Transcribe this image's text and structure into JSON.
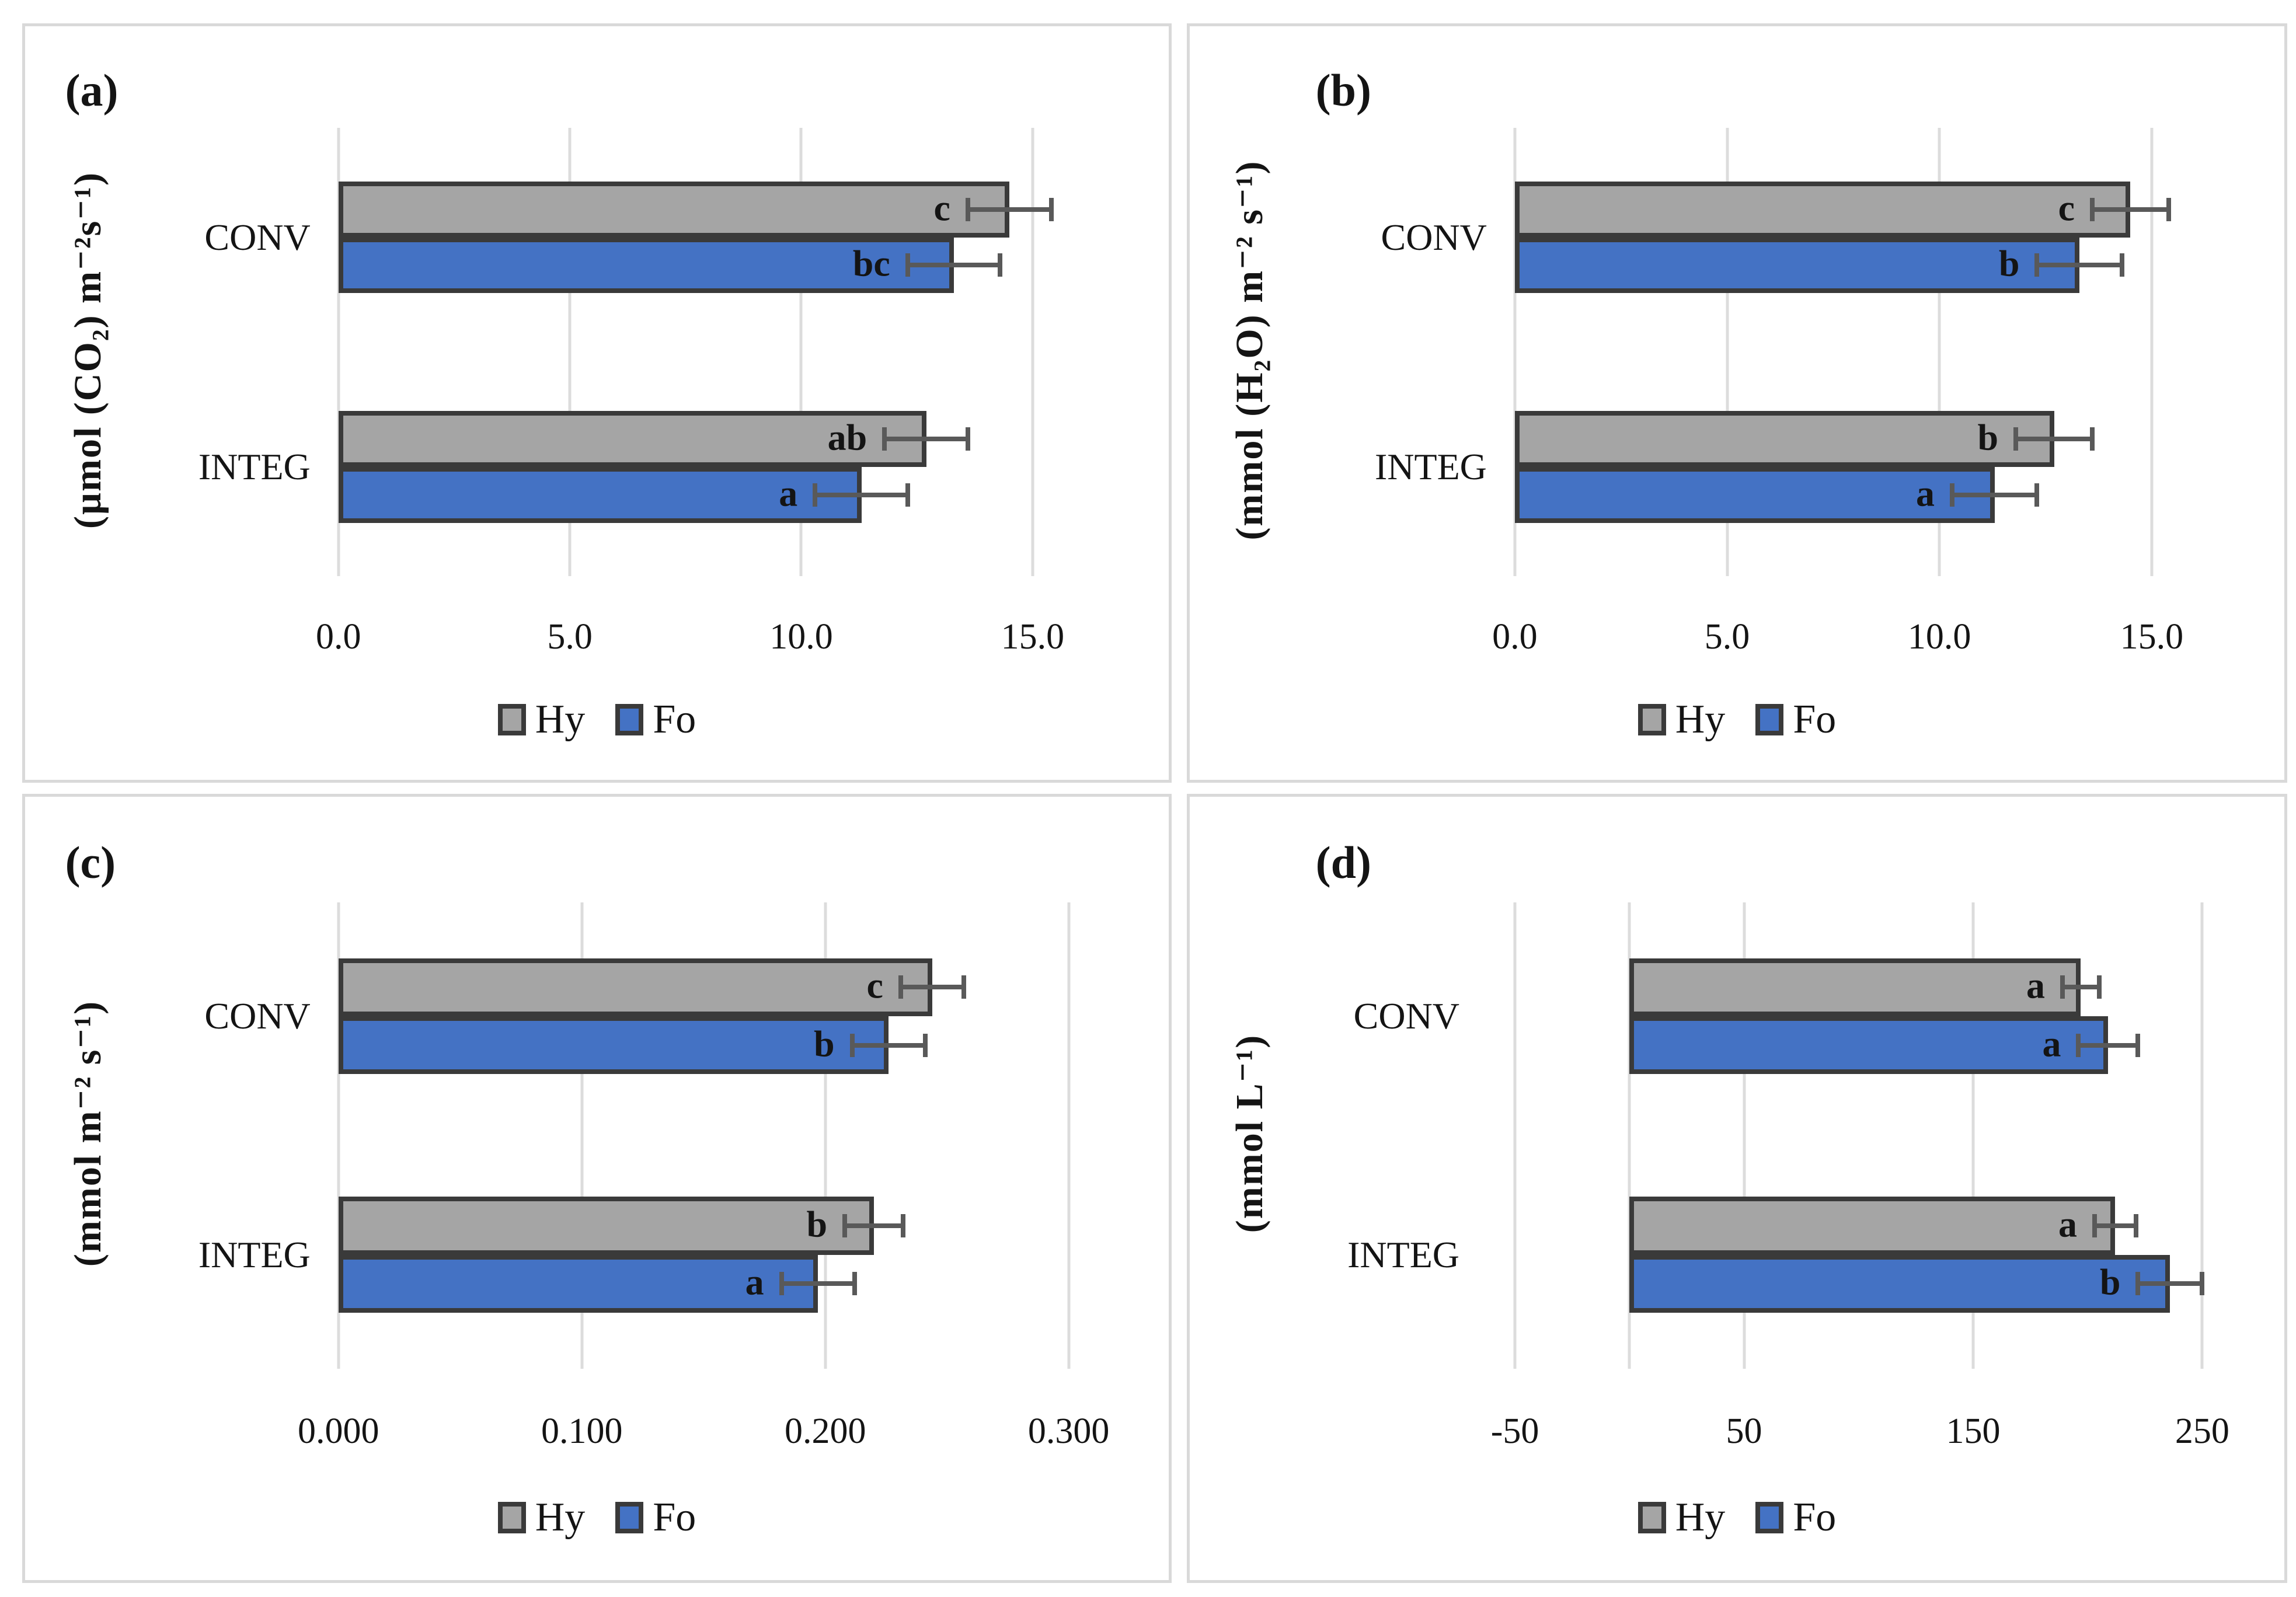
{
  "colors": {
    "hy_fill": "#A5A5A5",
    "fo_fill": "#4472C4",
    "bar_border": "#3A3A3A",
    "error_bar": "#595959",
    "gridline": "#DCDCDC",
    "panel_border": "#D9D9D9",
    "text": "#141414"
  },
  "chart_data": [
    {
      "id": "a",
      "panel_label": "(a)",
      "type": "bar",
      "orientation": "horizontal",
      "ylabel": "(µmol (CO₂) m⁻²s⁻¹)",
      "categories": [
        "CONV",
        "INTEG"
      ],
      "series": [
        {
          "name": "Hy",
          "color": "#A5A5A5",
          "values": [
            14.5,
            12.7
          ],
          "errors": [
            0.9,
            0.9
          ],
          "letters": [
            "c",
            "ab"
          ]
        },
        {
          "name": "Fo",
          "color": "#4472C4",
          "values": [
            13.3,
            11.3
          ],
          "errors": [
            1.0,
            1.0
          ],
          "letters": [
            "bc",
            "a"
          ]
        }
      ],
      "xlim": [
        0,
        17.2
      ],
      "gridlines": [
        0,
        5,
        10,
        15
      ],
      "ticks": {
        "values": [
          0,
          5,
          10,
          15
        ],
        "labels": [
          "0.0",
          "5.0",
          "10.0",
          "15.0"
        ]
      },
      "legend": {
        "position": "bottom",
        "items": [
          "Hy",
          "Fo"
        ]
      }
    },
    {
      "id": "b",
      "panel_label": "(b)",
      "type": "bar",
      "orientation": "horizontal",
      "ylabel": "(mmol (H₂O) m⁻² s⁻¹)",
      "categories": [
        "CONV",
        "INTEG"
      ],
      "series": [
        {
          "name": "Hy",
          "color": "#A5A5A5",
          "values": [
            14.5,
            12.7
          ],
          "errors": [
            0.9,
            0.9
          ],
          "letters": [
            "c",
            "b"
          ]
        },
        {
          "name": "Fo",
          "color": "#4472C4",
          "values": [
            13.3,
            11.3
          ],
          "errors": [
            1.0,
            1.0
          ],
          "letters": [
            "b",
            "a"
          ]
        }
      ],
      "xlim": [
        0,
        17.35
      ],
      "gridlines": [
        0,
        5,
        10,
        15
      ],
      "ticks": {
        "values": [
          0,
          5,
          10,
          15
        ],
        "labels": [
          "0.0",
          "5.0",
          "10.0",
          "15.0"
        ]
      },
      "legend": {
        "position": "bottom",
        "items": [
          "Hy",
          "Fo"
        ]
      }
    },
    {
      "id": "c",
      "panel_label": "(c)",
      "type": "bar",
      "orientation": "horizontal",
      "ylabel": "(mmol m⁻² s⁻¹)",
      "categories": [
        "CONV",
        "INTEG"
      ],
      "series": [
        {
          "name": "Hy",
          "color": "#A5A5A5",
          "values": [
            0.244,
            0.22
          ],
          "errors": [
            0.013,
            0.012
          ],
          "letters": [
            "c",
            "b"
          ]
        },
        {
          "name": "Fo",
          "color": "#4472C4",
          "values": [
            0.226,
            0.197
          ],
          "errors": [
            0.015,
            0.015
          ],
          "letters": [
            "b",
            "a"
          ]
        }
      ],
      "xlim": [
        0,
        0.327
      ],
      "gridlines": [
        0,
        0.1,
        0.2,
        0.3
      ],
      "ticks": {
        "values": [
          0,
          0.1,
          0.2,
          0.3
        ],
        "labels": [
          "0.000",
          "0.100",
          "0.200",
          "0.300"
        ]
      },
      "legend": {
        "position": "bottom",
        "items": [
          "Hy",
          "Fo"
        ]
      }
    },
    {
      "id": "d",
      "panel_label": "(d)",
      "type": "bar",
      "orientation": "horizontal",
      "ylabel": "(mmol L⁻¹)",
      "categories": [
        "CONV",
        "INTEG"
      ],
      "series": [
        {
          "name": "Hy",
          "color": "#A5A5A5",
          "values": [
            197,
            212
          ],
          "errors": [
            8,
            9
          ],
          "letters": [
            "a",
            "a"
          ]
        },
        {
          "name": "Fo",
          "color": "#4472C4",
          "values": [
            209,
            236
          ],
          "errors": [
            13,
            14
          ],
          "letters": [
            "a",
            "b"
          ]
        }
      ],
      "xlim": [
        -62,
        271.5
      ],
      "gridlines": [
        -50,
        0,
        50,
        150,
        250
      ],
      "ticks": {
        "values": [
          -50,
          50,
          150,
          250
        ],
        "labels": [
          "-50",
          "50",
          "150",
          "250"
        ]
      },
      "legend": {
        "position": "bottom",
        "items": [
          "Hy",
          "Fo"
        ]
      }
    }
  ]
}
